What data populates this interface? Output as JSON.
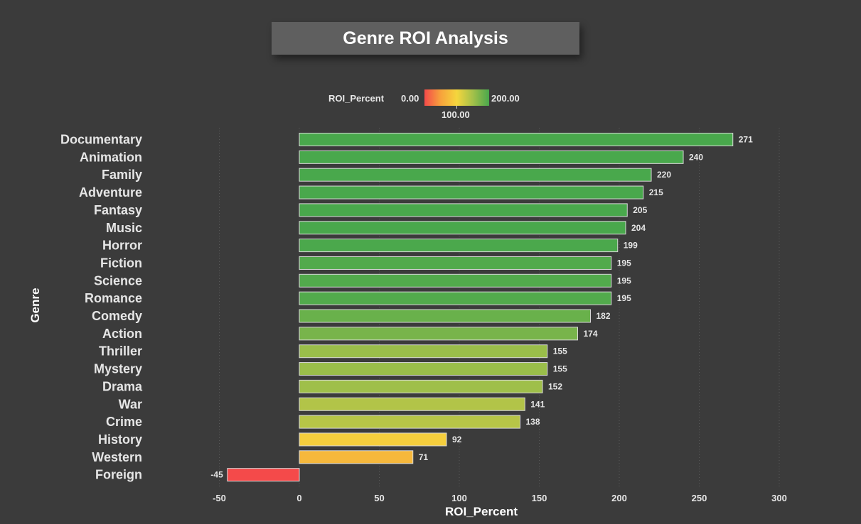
{
  "chart_data": {
    "type": "bar",
    "orientation": "horizontal",
    "title": "Genre ROI Analysis",
    "xlabel": "ROI_Percent",
    "ylabel": "Genre",
    "categories": [
      "Documentary",
      "Animation",
      "Family",
      "Adventure",
      "Fantasy",
      "Music",
      "Horror",
      "Fiction",
      "Science",
      "Romance",
      "Comedy",
      "Action",
      "Thriller",
      "Mystery",
      "Drama",
      "War",
      "Crime",
      "History",
      "Western",
      "Foreign"
    ],
    "values": [
      271,
      240,
      220,
      215,
      205,
      204,
      199,
      195,
      195,
      195,
      182,
      174,
      155,
      155,
      152,
      141,
      138,
      92,
      71,
      -45
    ],
    "xlim": [
      -50,
      300
    ],
    "xticks": [
      -50,
      0,
      50,
      100,
      150,
      200,
      250,
      300
    ],
    "grid": true,
    "colorbar": {
      "label": "ROI_Percent",
      "min_label": "0.00",
      "mid_label": "100.00",
      "max_label": "200.00",
      "colors": [
        "#f44a4a",
        "#f7a23c",
        "#f5d63d",
        "#a3c04a",
        "#49a84c"
      ]
    }
  }
}
